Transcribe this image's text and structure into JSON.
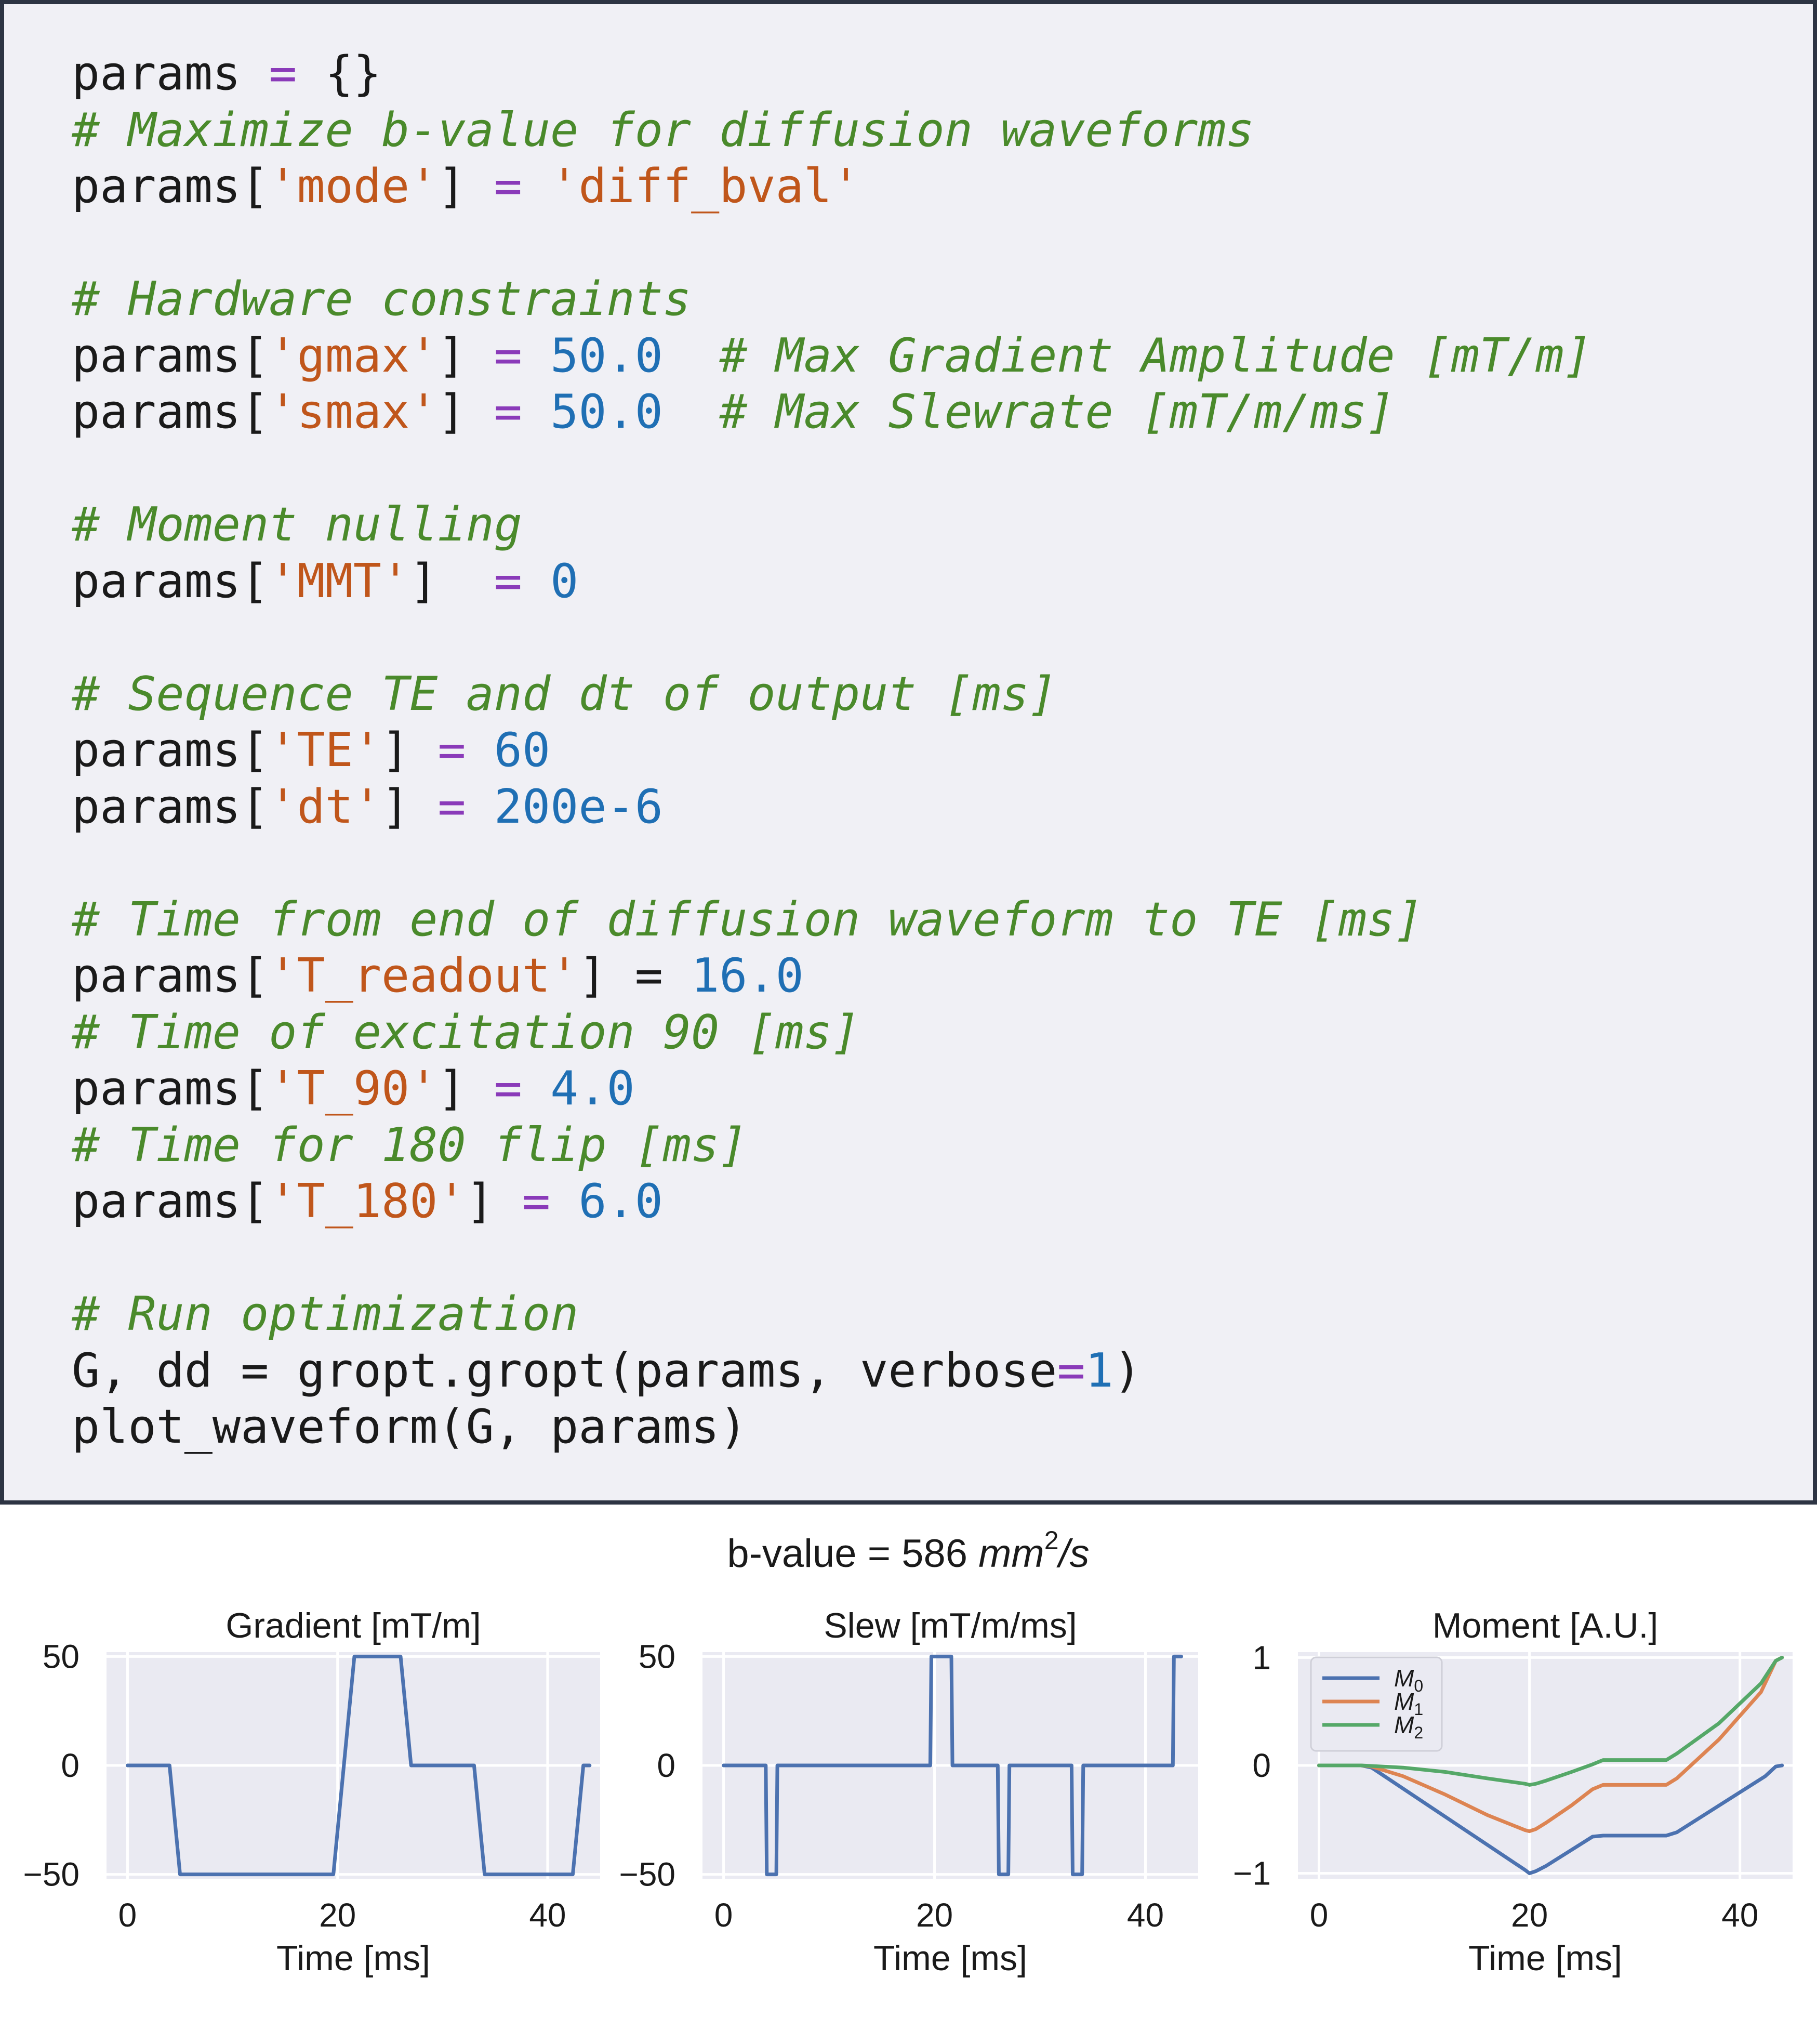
{
  "code": {
    "lines": [
      [
        {
          "t": "p",
          "v": "params "
        },
        {
          "t": "o",
          "v": "="
        },
        {
          "t": "p",
          "v": " {}"
        }
      ],
      [
        {
          "t": "c",
          "v": "# Maximize b-value for diffusion waveforms"
        }
      ],
      [
        {
          "t": "p",
          "v": "params["
        },
        {
          "t": "s",
          "v": "'mode'"
        },
        {
          "t": "p",
          "v": "] "
        },
        {
          "t": "o",
          "v": "="
        },
        {
          "t": "p",
          "v": " "
        },
        {
          "t": "s",
          "v": "'diff_bval'"
        }
      ],
      [],
      [
        {
          "t": "c",
          "v": "# Hardware constraints"
        }
      ],
      [
        {
          "t": "p",
          "v": "params["
        },
        {
          "t": "s",
          "v": "'gmax'"
        },
        {
          "t": "p",
          "v": "] "
        },
        {
          "t": "o",
          "v": "="
        },
        {
          "t": "p",
          "v": " "
        },
        {
          "t": "n",
          "v": "50.0"
        },
        {
          "t": "p",
          "v": "  "
        },
        {
          "t": "c",
          "v": "# Max Gradient Amplitude [mT/m]"
        }
      ],
      [
        {
          "t": "p",
          "v": "params["
        },
        {
          "t": "s",
          "v": "'smax'"
        },
        {
          "t": "p",
          "v": "] "
        },
        {
          "t": "o",
          "v": "="
        },
        {
          "t": "p",
          "v": " "
        },
        {
          "t": "n",
          "v": "50.0"
        },
        {
          "t": "p",
          "v": "  "
        },
        {
          "t": "c",
          "v": "# Max Slewrate [mT/m/ms]"
        }
      ],
      [],
      [
        {
          "t": "c",
          "v": "# Moment nulling"
        }
      ],
      [
        {
          "t": "p",
          "v": "params["
        },
        {
          "t": "s",
          "v": "'MMT'"
        },
        {
          "t": "p",
          "v": "]  "
        },
        {
          "t": "o",
          "v": "="
        },
        {
          "t": "p",
          "v": " "
        },
        {
          "t": "n",
          "v": "0"
        }
      ],
      [],
      [
        {
          "t": "c",
          "v": "# Sequence TE and dt of output [ms]"
        }
      ],
      [
        {
          "t": "p",
          "v": "params["
        },
        {
          "t": "s",
          "v": "'TE'"
        },
        {
          "t": "p",
          "v": "] "
        },
        {
          "t": "o",
          "v": "="
        },
        {
          "t": "p",
          "v": " "
        },
        {
          "t": "n",
          "v": "60"
        }
      ],
      [
        {
          "t": "p",
          "v": "params["
        },
        {
          "t": "s",
          "v": "'dt'"
        },
        {
          "t": "p",
          "v": "] "
        },
        {
          "t": "o",
          "v": "="
        },
        {
          "t": "p",
          "v": " "
        },
        {
          "t": "n",
          "v": "200e-6"
        }
      ],
      [],
      [
        {
          "t": "c",
          "v": "# Time from end of diffusion waveform to TE [ms]"
        }
      ],
      [
        {
          "t": "p",
          "v": "params["
        },
        {
          "t": "s",
          "v": "'T_readout'"
        },
        {
          "t": "p",
          "v": "] = "
        },
        {
          "t": "n",
          "v": "16.0"
        }
      ],
      [
        {
          "t": "c",
          "v": "# Time of excitation 90 [ms]"
        }
      ],
      [
        {
          "t": "p",
          "v": "params["
        },
        {
          "t": "s",
          "v": "'T_90'"
        },
        {
          "t": "p",
          "v": "] "
        },
        {
          "t": "o",
          "v": "="
        },
        {
          "t": "p",
          "v": " "
        },
        {
          "t": "n",
          "v": "4.0"
        }
      ],
      [
        {
          "t": "c",
          "v": "# Time for 180 flip [ms]"
        }
      ],
      [
        {
          "t": "p",
          "v": "params["
        },
        {
          "t": "s",
          "v": "'T_180'"
        },
        {
          "t": "p",
          "v": "] "
        },
        {
          "t": "o",
          "v": "="
        },
        {
          "t": "p",
          "v": " "
        },
        {
          "t": "n",
          "v": "6.0"
        }
      ],
      [],
      [
        {
          "t": "c",
          "v": "# Run optimization"
        }
      ],
      [
        {
          "t": "p",
          "v": "G, dd = gropt.gropt(params, verbose"
        },
        {
          "t": "o",
          "v": "="
        },
        {
          "t": "n",
          "v": "1"
        },
        {
          "t": "p",
          "v": ")"
        }
      ],
      [
        {
          "t": "p",
          "v": "plot_waveform(G, params)"
        }
      ]
    ]
  },
  "colors": {
    "panel_background": "#f0f0f5",
    "panel_border": "#2d3443",
    "plot_background": "#eaeaf2",
    "grid": "#ffffff",
    "comment": "#4a8a2b",
    "string": "#c0561b",
    "number": "#1f6fb4",
    "operator": "#8a3ab9",
    "M0": "#4c72b0",
    "M1": "#dd8452",
    "M2": "#55a868"
  },
  "figure": {
    "suptitle_prefix": "b-value = 586 ",
    "suptitle_unit_base": "mm",
    "suptitle_unit_exp": "2",
    "suptitle_unit_tail": "/s"
  },
  "chart_data": [
    {
      "type": "line",
      "title": "Gradient [mT/m]",
      "xlabel": "Time [ms]",
      "ylabel": "",
      "xlim": [
        -2,
        45
      ],
      "ylim": [
        -52,
        52
      ],
      "xticks": [
        0,
        20,
        40
      ],
      "yticks": [
        -50,
        0,
        50
      ],
      "ytick_labels": [
        "−50",
        "0",
        "50"
      ],
      "grid": true,
      "series": [
        {
          "color": "#4c72b0",
          "x": [
            0,
            4,
            5,
            19.6,
            20.6,
            21.6,
            26,
            27,
            33,
            34,
            42.4,
            43.4,
            44
          ],
          "y": [
            0,
            0,
            -50,
            -50,
            0,
            50,
            50,
            0,
            0,
            -50,
            -50,
            0,
            0
          ]
        }
      ]
    },
    {
      "type": "line",
      "title": "Slew [mT/m/ms]",
      "xlabel": "Time [ms]",
      "ylabel": "",
      "xlim": [
        -2,
        45
      ],
      "ylim": [
        -52,
        52
      ],
      "xticks": [
        0,
        20,
        40
      ],
      "yticks": [
        -50,
        0,
        50
      ],
      "ytick_labels": [
        "−50",
        "0",
        "50"
      ],
      "grid": true,
      "series": [
        {
          "color": "#4c72b0",
          "x": [
            0,
            4,
            4.1,
            5,
            5.1,
            19.6,
            19.7,
            21.6,
            21.7,
            26,
            26.1,
            27,
            27.1,
            33,
            33.1,
            34,
            34.1,
            42.6,
            42.7,
            43.4
          ],
          "y": [
            0,
            0,
            -50,
            -50,
            0,
            0,
            50,
            50,
            0,
            0,
            -50,
            -50,
            0,
            0,
            -50,
            -50,
            0,
            0,
            50,
            50
          ]
        }
      ]
    },
    {
      "type": "line",
      "title": "Moment [A.U.]",
      "xlabel": "Time [ms]",
      "ylabel": "",
      "xlim": [
        -2,
        45
      ],
      "ylim": [
        -1.05,
        1.05
      ],
      "xticks": [
        0,
        20,
        40
      ],
      "yticks": [
        -1,
        0,
        1
      ],
      "ytick_labels": [
        "−1",
        "0",
        "1"
      ],
      "grid": true,
      "legend": "top-left",
      "series": [
        {
          "name": "M",
          "sub": "0",
          "color": "#4c72b0",
          "x": [
            0,
            4,
            5,
            19.6,
            20,
            20.6,
            21.6,
            26,
            27,
            33,
            34,
            42.4,
            43.4,
            44
          ],
          "y": [
            0,
            0,
            -0.02,
            -0.97,
            -1.0,
            -0.98,
            -0.93,
            -0.66,
            -0.65,
            -0.65,
            -0.62,
            -0.1,
            -0.01,
            0
          ]
        },
        {
          "name": "M",
          "sub": "1",
          "color": "#dd8452",
          "x": [
            0,
            4,
            5,
            8,
            12,
            16,
            19.6,
            20,
            20.6,
            21.6,
            24,
            26,
            27,
            33,
            34,
            38,
            42,
            43.4,
            44
          ],
          "y": [
            0,
            0,
            -0.01,
            -0.1,
            -0.27,
            -0.46,
            -0.6,
            -0.61,
            -0.59,
            -0.53,
            -0.37,
            -0.22,
            -0.18,
            -0.18,
            -0.12,
            0.24,
            0.68,
            0.97,
            1.0
          ]
        },
        {
          "name": "M",
          "sub": "2",
          "color": "#55a868",
          "x": [
            0,
            4,
            5,
            8,
            12,
            16,
            19.6,
            20,
            20.6,
            21.6,
            24,
            26,
            27,
            33,
            34,
            38,
            42,
            43.4,
            44
          ],
          "y": [
            0,
            0,
            -0.005,
            -0.02,
            -0.06,
            -0.12,
            -0.17,
            -0.18,
            -0.17,
            -0.14,
            -0.06,
            0.01,
            0.05,
            0.05,
            0.11,
            0.39,
            0.76,
            0.97,
            1.0
          ]
        }
      ]
    }
  ]
}
